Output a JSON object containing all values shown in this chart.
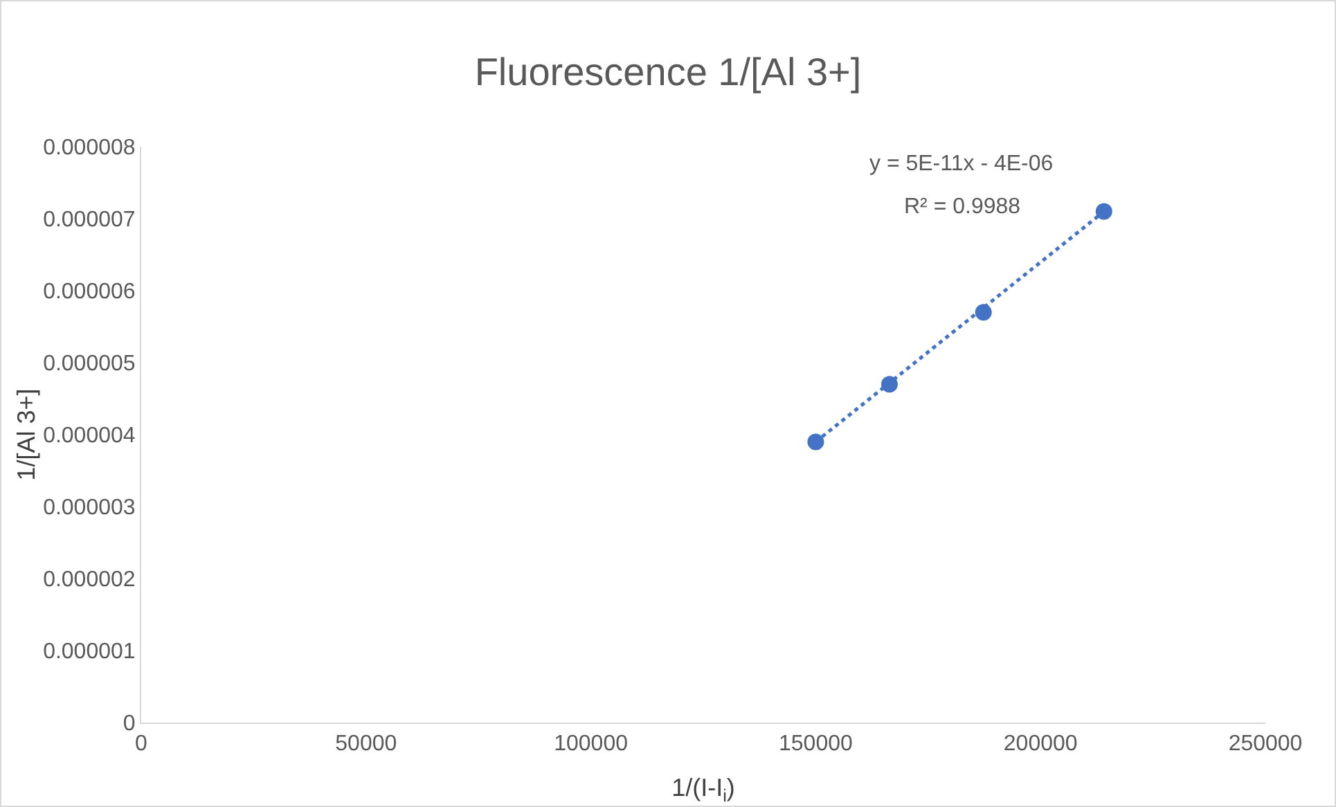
{
  "chart_data": {
    "type": "scatter",
    "title": "Fluorescence 1/[Al 3+]",
    "xlabel": "1/(I-I$_{i}$)",
    "ylabel": "1/[Al 3+]",
    "x": [
      150000,
      166400,
      187300,
      214100
    ],
    "series": [
      {
        "color": "#4472c4",
        "values": [
          3.9e-06,
          4.7e-06,
          5.7e-06,
          7.1e-06
        ],
        "marker": "circle"
      },
      {
        "type": "line",
        "color": "#4472c4",
        "x": [
          150000,
          214100
        ],
        "values": [
          3.9e-06,
          7.1e-06
        ],
        "line_style": "dotted",
        "marker": "none"
      }
    ],
    "annotations": [
      "y = 5E-11x - 4E-06",
      "R² = 0.9988"
    ],
    "xlim": [
      0,
      250000
    ],
    "xticks": [
      0,
      50000,
      100000,
      150000,
      200000,
      250000
    ],
    "ylim": [
      0,
      8e-06
    ],
    "yticks": [
      0,
      {
        "value": 1e-06,
        "label": "0.000001"
      },
      {
        "value": 2e-06,
        "label": "0.000002"
      },
      {
        "value": 3e-06,
        "label": "0.000003"
      },
      {
        "value": 4e-06,
        "label": "0.000004"
      },
      {
        "value": 5e-06,
        "label": "0.000005"
      },
      {
        "value": 6e-06,
        "label": "0.000006"
      },
      {
        "value": 7e-06,
        "label": "0.000007"
      },
      {
        "value": 8e-06,
        "label": "0.000008"
      }
    ],
    "grid": false
  }
}
